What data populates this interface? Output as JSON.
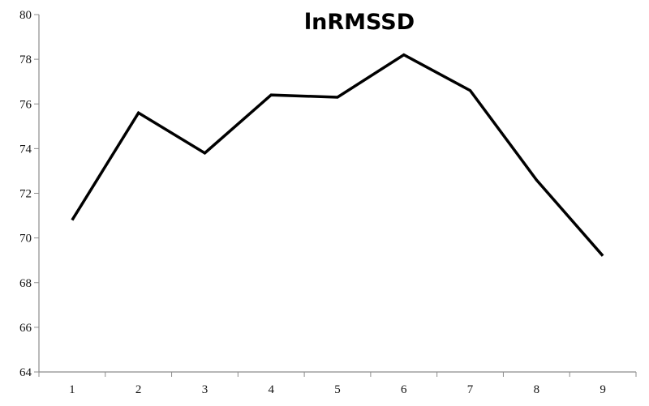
{
  "chart_data": {
    "type": "line",
    "title": "lnRMSSD",
    "xlabel": "",
    "ylabel": "",
    "categories": [
      "1",
      "2",
      "3",
      "4",
      "5",
      "6",
      "7",
      "8",
      "9"
    ],
    "series": [
      {
        "values": [
          70.8,
          75.6,
          73.8,
          76.4,
          76.3,
          78.2,
          76.6,
          72.6,
          69.2
        ],
        "color": "#000000"
      }
    ],
    "ylim": [
      64,
      80
    ],
    "yticks": [
      "64",
      "66",
      "68",
      "70",
      "72",
      "74",
      "76",
      "78",
      "80"
    ],
    "grid": false,
    "legend": "none"
  }
}
